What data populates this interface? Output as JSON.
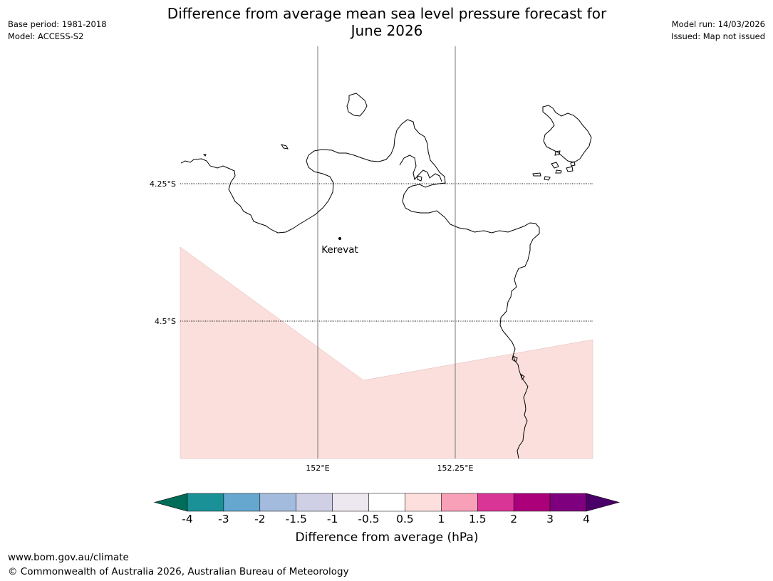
{
  "header": {
    "title_line1": "Difference from average mean sea level pressure forecast for",
    "title_line2": "June 2026",
    "base_period": "Base period: 1981-2018",
    "model": "Model: ACCESS-S2",
    "model_run": "Model run: 14/03/2026",
    "issued": "Issued: Map not issued"
  },
  "map": {
    "lat_labels": [
      "4.25°S",
      "4.5°S"
    ],
    "lon_labels": [
      "152°E",
      "152.25°E"
    ],
    "place": {
      "name": "Kerevat",
      "marker": "dot"
    }
  },
  "colorbar": {
    "label": "Difference from average (hPa)",
    "ticks": [
      "-4",
      "-3",
      "-2",
      "-1.5",
      "-1",
      "-0.5",
      "0.5",
      "1",
      "1.5",
      "2",
      "3",
      "4"
    ],
    "colors": [
      "#1a9197",
      "#66a7cf",
      "#a3bbdc",
      "#cfd0e6",
      "#ede7ef",
      "#ffffff",
      "#fde0de",
      "#f8a0b8",
      "#d93597",
      "#ab007a",
      "#7f007f"
    ],
    "extend_low_color": "#006d58",
    "extend_high_color": "#4a0068"
  },
  "shading": {
    "fill": "#fbdfdc",
    "category": "0.5 to 1"
  },
  "footer": {
    "url": "www.bom.gov.au/climate",
    "copyright": "© Commonwealth of Australia 2026, Australian Bureau of Meteorology"
  }
}
